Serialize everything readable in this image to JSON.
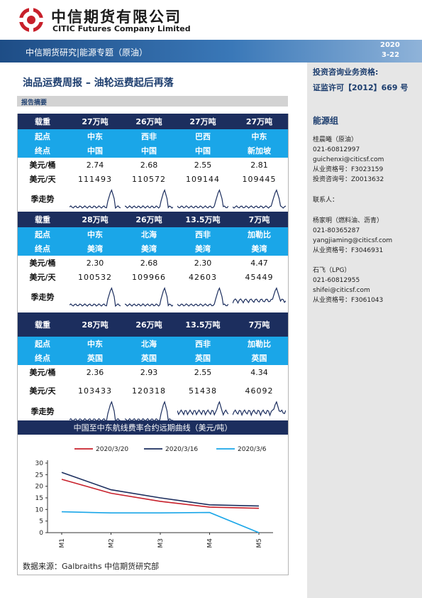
{
  "header": {
    "company_cn": "中信期货有限公司",
    "company_en": "CITIC Futures Company Limited",
    "banner_title": "中信期货研究|能源专题（原油）",
    "date_year": "2020",
    "date_md": "3-22"
  },
  "sidebar": {
    "qual_title": "投资咨询业务资格:",
    "qual_value": "证监许可【2012】669 号",
    "group_title": "能源组",
    "contacts": [
      {
        "lines": [
          "桂晨曦（原油）",
          "021-60812997",
          "guichenxi@citicsf.com",
          "从业资格号：F3023159",
          "投资咨询号：Z0013632"
        ]
      },
      {
        "lines": [
          "联系人："
        ]
      },
      {
        "lines": [
          "杨家明（燃料油、沥青）",
          "021-80365287",
          "yangjiaming@citicsf.com",
          "从业资格号：F3046931"
        ]
      },
      {
        "lines": [
          "石飞（LPG）",
          "021-60812955",
          "shifei@citicsf.com",
          "从业资格号：F3061043"
        ]
      }
    ]
  },
  "main": {
    "report_title": "油品运费周报  –  油轮运费起后再落",
    "summary_label": "报告摘要",
    "tables": [
      {
        "load_label": "载重",
        "loads": [
          "27万吨",
          "26万吨",
          "27万吨",
          "27万吨"
        ],
        "origin_label": "起点",
        "origins": [
          "中东",
          "西非",
          "巴西",
          "中东"
        ],
        "dest_label": "终点",
        "dests": [
          "中国",
          "中国",
          "中国",
          "新加坡"
        ],
        "bbl_label": "美元/桶",
        "bbl": [
          "2.74",
          "2.68",
          "2.55",
          "2.81"
        ],
        "day_label": "美元/天",
        "day": [
          "111493",
          "110572",
          "109144",
          "109445"
        ],
        "season_label": "季走势"
      },
      {
        "load_label": "载重",
        "loads": [
          "28万吨",
          "26万吨",
          "13.5万吨",
          "7万吨"
        ],
        "origin_label": "起点",
        "origins": [
          "中东",
          "北海",
          "西非",
          "加勒比"
        ],
        "dest_label": "终点",
        "dests": [
          "美湾",
          "美湾",
          "美湾",
          "美湾"
        ],
        "bbl_label": "美元/桶",
        "bbl": [
          "2.30",
          "2.68",
          "2.30",
          "4.47"
        ],
        "day_label": "美元/天",
        "day": [
          "100532",
          "109966",
          "42603",
          "45449"
        ],
        "season_label": "季走势"
      },
      {
        "load_label": "载重",
        "loads": [
          "28万吨",
          "26万吨",
          "13.5万吨",
          "7万吨"
        ],
        "origin_label": "起点",
        "origins": [
          "中东",
          "北海",
          "西非",
          "加勒比"
        ],
        "dest_label": "终点",
        "dests": [
          "英国",
          "英国",
          "英国",
          "英国"
        ],
        "bbl_label": "美元/桶",
        "bbl": [
          "2.36",
          "2.93",
          "2.55",
          "4.34"
        ],
        "day_label": "美元/天",
        "day": [
          "103433",
          "120318",
          "51438",
          "46092"
        ],
        "season_label": "季走势"
      }
    ],
    "curve_title": "中国至中东航线费率合约远期曲线（美元/吨）",
    "source": "数据来源：Galbraiths 中信期货研究部"
  },
  "chart_data": {
    "type": "line",
    "title": "中国至中东航线费率合约远期曲线（美元/吨）",
    "x": [
      "M1",
      "M2",
      "M3",
      "M4",
      "M5"
    ],
    "ylim": [
      0,
      30
    ],
    "yticks": [
      0,
      5,
      10,
      15,
      20,
      25,
      30
    ],
    "legend_position": "top",
    "grid": false,
    "series": [
      {
        "name": "2020/3/20",
        "color": "#c8202b",
        "values": [
          23,
          17,
          13.5,
          11,
          10.5
        ]
      },
      {
        "name": "2020/3/16",
        "color": "#1c2e5e",
        "values": [
          26,
          18.5,
          15,
          12,
          11.5
        ]
      },
      {
        "name": "2020/3/6",
        "color": "#1aa6e8",
        "values": [
          9,
          8.5,
          8.5,
          8.7,
          0
        ]
      }
    ]
  },
  "colors": {
    "dark_navy": "#1c2e5e",
    "cyan": "#1aa6e8",
    "red": "#c8202b",
    "title_blue": "#1c3d6e"
  }
}
